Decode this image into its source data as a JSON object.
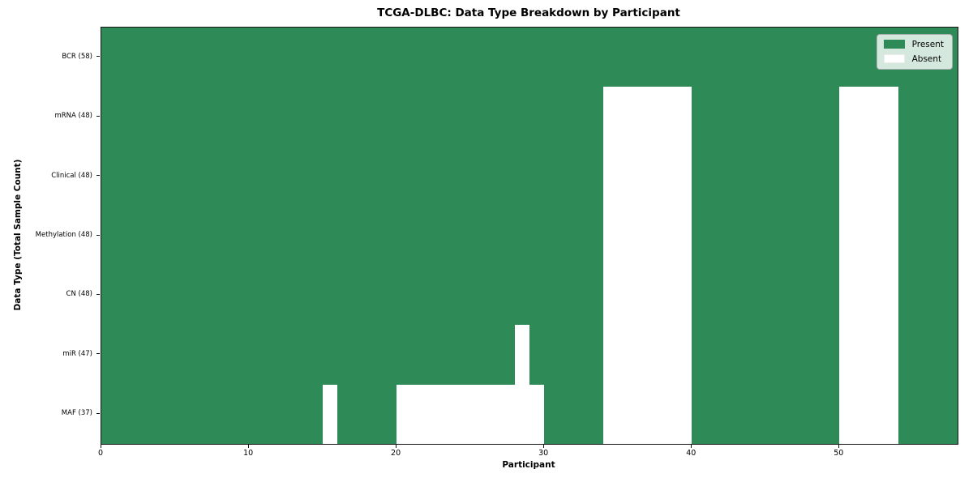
{
  "chart_data": {
    "type": "heatmap",
    "title": "TCGA-DLBC: Data Type Breakdown by Participant",
    "xlabel": "Participant",
    "ylabel": "Data Type (Total Sample Count)",
    "x_range": [
      0,
      58
    ],
    "x_ticks": [
      0,
      10,
      20,
      30,
      40,
      50
    ],
    "n_participants": 58,
    "grid": true,
    "legend_position": "upper right",
    "legend": {
      "entries": [
        {
          "label": "Present",
          "color": "#2e8b57"
        },
        {
          "label": "Absent",
          "color": "#ffffff"
        }
      ]
    },
    "colors": {
      "present": "#2e8b57",
      "absent": "#ffffff"
    },
    "rows": [
      {
        "label": "BCR (58)",
        "data_type": "BCR",
        "present_count": 58,
        "absent_participants": []
      },
      {
        "label": "mRNA (48)",
        "data_type": "mRNA",
        "present_count": 48,
        "absent_participants": [
          34,
          35,
          36,
          37,
          38,
          39,
          50,
          51,
          52,
          53
        ]
      },
      {
        "label": "Clinical (48)",
        "data_type": "Clinical",
        "present_count": 48,
        "absent_participants": [
          34,
          35,
          36,
          37,
          38,
          39,
          50,
          51,
          52,
          53
        ]
      },
      {
        "label": "Methylation (48)",
        "data_type": "Methylation",
        "present_count": 48,
        "absent_participants": [
          34,
          35,
          36,
          37,
          38,
          39,
          50,
          51,
          52,
          53
        ]
      },
      {
        "label": "CN (48)",
        "data_type": "CN",
        "present_count": 48,
        "absent_participants": [
          34,
          35,
          36,
          37,
          38,
          39,
          50,
          51,
          52,
          53
        ]
      },
      {
        "label": "miR (47)",
        "data_type": "miR",
        "present_count": 47,
        "absent_participants": [
          28,
          34,
          35,
          36,
          37,
          38,
          39,
          50,
          51,
          52,
          53
        ]
      },
      {
        "label": "MAF (37)",
        "data_type": "MAF",
        "present_count": 37,
        "absent_participants": [
          15,
          20,
          21,
          22,
          23,
          24,
          25,
          26,
          27,
          28,
          29,
          34,
          35,
          36,
          37,
          38,
          39,
          50,
          51,
          52,
          53
        ]
      }
    ]
  }
}
